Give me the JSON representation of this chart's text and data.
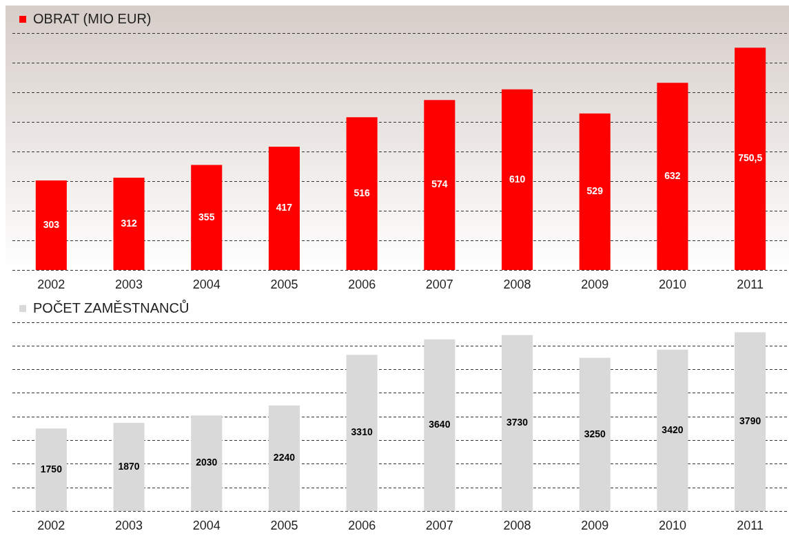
{
  "chart_data": [
    {
      "type": "bar",
      "categories": [
        "2002",
        "2003",
        "2004",
        "2005",
        "2006",
        "2007",
        "2008",
        "2009",
        "2010",
        "2011"
      ],
      "series": [
        {
          "name": "OBRAT (MIO EUR)",
          "color": "#ff0000",
          "values": [
            303,
            312,
            355,
            417,
            516,
            574,
            610,
            529,
            632,
            750.5
          ],
          "value_labels": [
            "303",
            "312",
            "355",
            "417",
            "516",
            "574",
            "610",
            "529",
            "632",
            "750,5"
          ]
        }
      ],
      "ylim": [
        0,
        800
      ],
      "yticks": [
        {
          "value": 0,
          "label": null
        },
        {
          "value": 100,
          "label": null
        },
        {
          "value": 200,
          "label": null
        },
        {
          "value": 300,
          "label": null
        },
        {
          "value": 400,
          "label": null
        },
        {
          "value": 500,
          "label": null
        },
        {
          "value": 600,
          "label": null
        },
        {
          "value": 700,
          "label": null
        },
        {
          "value": 800,
          "label": null
        }
      ],
      "tick_labels": "x",
      "grid": "y",
      "line_style": "dashed",
      "legend": "top left"
    },
    {
      "type": "bar",
      "categories": [
        "2002",
        "2003",
        "2004",
        "2005",
        "2006",
        "2007",
        "2008",
        "2009",
        "2010",
        "2011"
      ],
      "series": [
        {
          "name": "POČET ZAMĚSTNANCŮ",
          "color": "#d9d9d9",
          "values": [
            1750,
            1870,
            2030,
            2240,
            3310,
            3640,
            3730,
            3250,
            3420,
            3790
          ],
          "value_labels": [
            "1750",
            "1870",
            "2030",
            "2240",
            "3310",
            "3640",
            "3730",
            "3250",
            "3420",
            "3790"
          ]
        }
      ],
      "ylim": [
        0,
        4000
      ],
      "yticks": [
        {
          "value": 0,
          "label": null
        },
        {
          "value": 500,
          "label": null
        },
        {
          "value": 1000,
          "label": null
        },
        {
          "value": 1500,
          "label": null
        },
        {
          "value": 2000,
          "label": null
        },
        {
          "value": 2500,
          "label": null
        },
        {
          "value": 3000,
          "label": null
        },
        {
          "value": 3500,
          "label": null
        },
        {
          "value": 4000,
          "label": null
        }
      ],
      "tick_labels": "x",
      "grid": "y",
      "line_style": "dashed",
      "legend": "top left"
    }
  ]
}
